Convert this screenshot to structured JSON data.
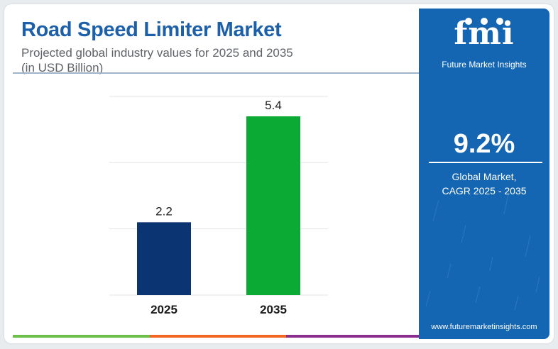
{
  "title": "Road Speed Limiter Market",
  "subtitle_line1": "Projected global industry values for 2025 and 2035",
  "subtitle_line2": "(in USD Billion)",
  "chart_data": {
    "type": "bar",
    "categories": [
      "2025",
      "2035"
    ],
    "values": [
      2.2,
      5.4
    ],
    "value_labels": [
      "2.2",
      "5.4"
    ],
    "bar_colors": [
      "#0b3572",
      "#0aaa34"
    ],
    "ylim": [
      0,
      6
    ],
    "grid": true,
    "xlabel": "",
    "ylabel": ""
  },
  "bottom_bar_colors": [
    "#6cc04a",
    "#f26522",
    "#8a2f8f"
  ],
  "brand": {
    "logo": "fmi",
    "logo_text": "Future Market Insights",
    "panel_color": "#1466b2",
    "website": "www.futuremarketinsights.com"
  },
  "cagr": {
    "value": "9.2%",
    "label_line1": "Global Market,",
    "label_line2": "CAGR 2025 - 2035"
  }
}
